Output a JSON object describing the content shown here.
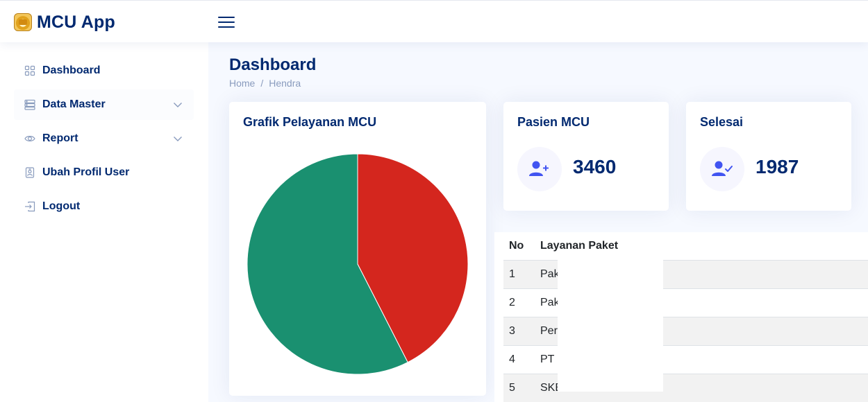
{
  "app": {
    "title": "MCU App"
  },
  "sidebar": {
    "items": [
      {
        "label": "Dashboard",
        "icon": "grid-icon"
      },
      {
        "label": "Data Master",
        "icon": "server-icon",
        "expandable": true
      },
      {
        "label": "Report",
        "icon": "eye-icon",
        "expandable": true
      },
      {
        "label": "Ubah Profil User",
        "icon": "person-badge-icon"
      },
      {
        "label": "Logout",
        "icon": "box-arrow-in-right-icon"
      }
    ]
  },
  "page": {
    "title": "Dashboard",
    "breadcrumb": [
      "Home",
      "Hendra"
    ]
  },
  "chart_card": {
    "title": "Grafik Pelayanan MCU"
  },
  "chart_data": {
    "type": "pie",
    "title": "Grafik Pelayanan MCU",
    "slices": [
      {
        "value": 42.5,
        "color": "#d4261e"
      },
      {
        "value": 57.5,
        "color": "#1a9070"
      }
    ]
  },
  "stats": [
    {
      "title": "Pasien MCU",
      "value": "3460",
      "icon": "person-plus-icon"
    },
    {
      "title": "Selesai",
      "value": "1987",
      "icon": "person-check-icon"
    }
  ],
  "table": {
    "headers": [
      "No",
      "Layanan Paket"
    ],
    "rows": [
      {
        "no": "1",
        "name": "Pak"
      },
      {
        "no": "2",
        "name": "Pak"
      },
      {
        "no": "3",
        "name": "Per"
      },
      {
        "no": "4",
        "name": "PT I"
      },
      {
        "no": "5",
        "name": "SKE"
      }
    ]
  },
  "colors": {
    "primary": "#012970",
    "accent": "#4154f1",
    "background": "#f6f9ff"
  }
}
